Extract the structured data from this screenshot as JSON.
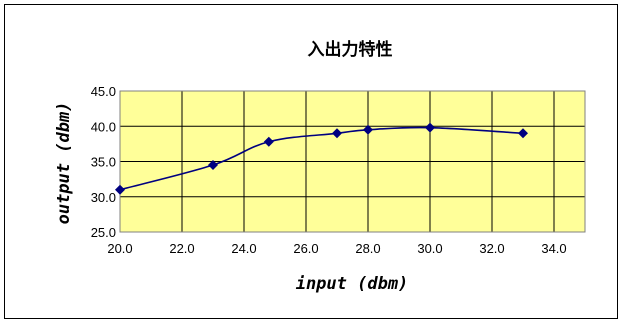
{
  "chart_data": {
    "type": "line",
    "title": "入出力特性",
    "xlabel": "input (dbm)",
    "ylabel": "output (dbm)",
    "xlim": [
      20.0,
      35.0
    ],
    "ylim": [
      25.0,
      45.0
    ],
    "xticks": [
      "20.0",
      "22.0",
      "24.0",
      "26.0",
      "28.0",
      "30.0",
      "32.0",
      "34.0"
    ],
    "yticks": [
      "25.0",
      "30.0",
      "35.0",
      "40.0",
      "45.0"
    ],
    "x": [
      20.0,
      23.0,
      24.8,
      27.0,
      28.0,
      30.0,
      33.0
    ],
    "y": [
      31.0,
      34.5,
      37.8,
      39.0,
      39.5,
      39.8,
      39.0
    ],
    "grid": true,
    "plot_background": "#ffff99",
    "line_color": "#000080",
    "marker": "diamond"
  }
}
